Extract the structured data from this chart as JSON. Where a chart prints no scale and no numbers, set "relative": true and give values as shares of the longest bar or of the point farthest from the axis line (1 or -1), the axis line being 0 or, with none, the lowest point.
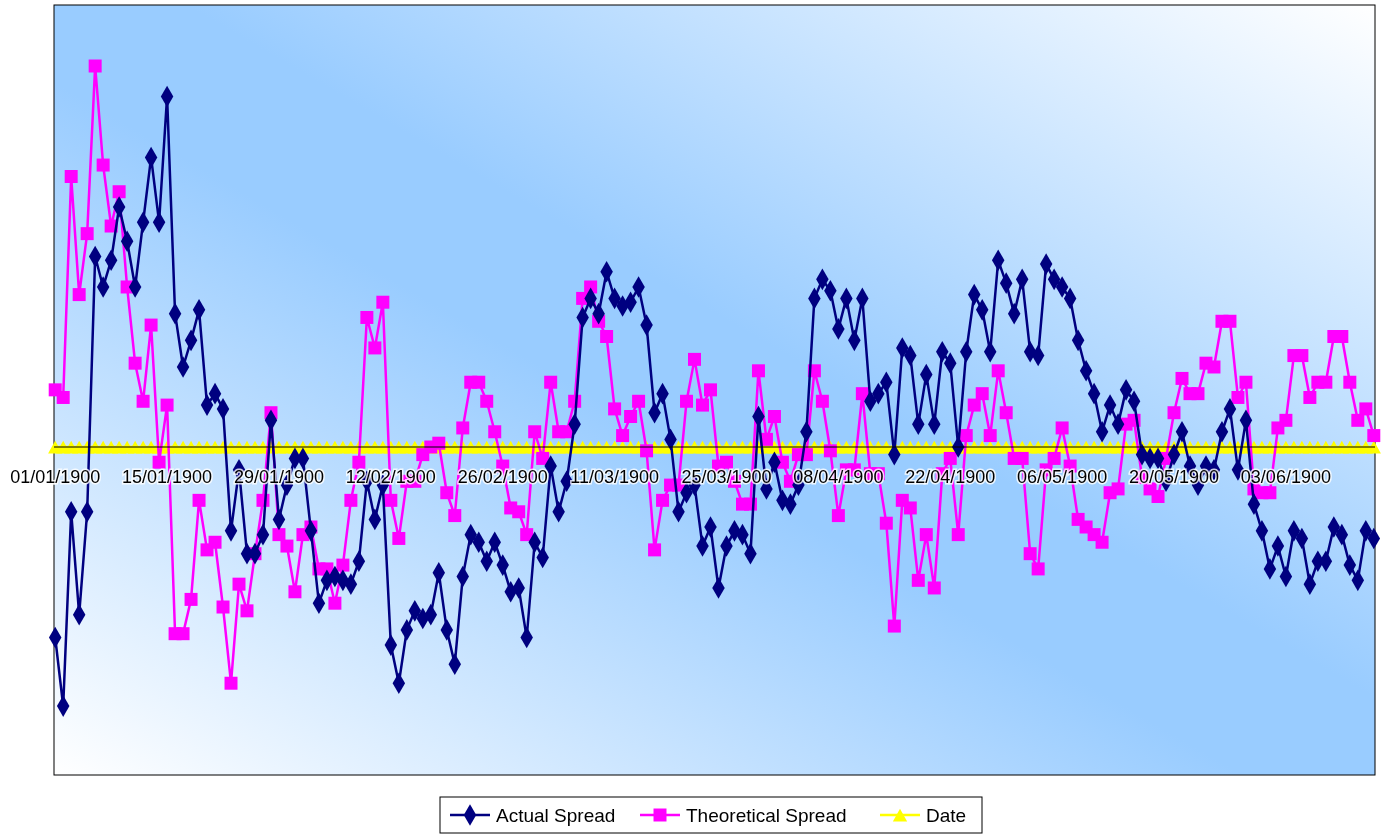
{
  "chart_data": {
    "type": "line",
    "relative": true,
    "legend": "bottom",
    "categories": [
      "01/01/1900",
      null,
      null,
      null,
      null,
      null,
      null,
      null,
      null,
      null,
      null,
      null,
      null,
      null,
      "15/01/1900",
      null,
      null,
      null,
      null,
      null,
      null,
      null,
      null,
      null,
      null,
      null,
      null,
      null,
      "29/01/1900",
      null,
      null,
      null,
      null,
      null,
      null,
      null,
      null,
      null,
      null,
      null,
      null,
      null,
      "12/02/1900",
      null,
      null,
      null,
      null,
      null,
      null,
      null,
      null,
      null,
      null,
      null,
      null,
      null,
      "26/02/1900",
      null,
      null,
      null,
      null,
      null,
      null,
      null,
      null,
      null,
      null,
      null,
      null,
      null,
      "11/03/1900",
      null,
      null,
      null,
      null,
      null,
      null,
      null,
      null,
      null,
      null,
      null,
      null,
      null,
      "25/03/1900",
      null,
      null,
      null,
      null,
      null,
      null,
      null,
      null,
      null,
      null,
      null,
      null,
      null,
      "08/04/1900",
      null,
      null,
      null,
      null,
      null,
      null,
      null,
      null,
      null,
      null,
      null,
      null,
      null,
      "22/04/1900",
      null,
      null,
      null,
      null,
      null,
      null,
      null,
      null,
      null,
      null,
      null,
      null,
      null,
      "06/05/1900",
      null,
      null,
      null,
      null,
      null,
      null,
      null,
      null,
      null,
      null,
      null,
      null,
      null,
      "20/05/1900",
      null,
      null,
      null,
      null,
      null,
      null,
      null,
      null,
      null,
      null,
      null,
      null,
      null,
      "03/06/1900",
      null,
      null,
      null,
      null,
      null,
      null,
      null,
      null,
      null,
      null,
      null
    ],
    "series": [
      {
        "name": "Actual Spread",
        "color": "#000080",
        "marker": "diamond",
        "values": [
          -0.5,
          -0.68,
          -0.17,
          -0.44,
          -0.17,
          0.5,
          0.42,
          0.49,
          0.63,
          0.54,
          0.42,
          0.59,
          0.76,
          0.59,
          0.92,
          0.35,
          0.21,
          0.28,
          0.36,
          0.11,
          0.14,
          0.1,
          -0.22,
          -0.06,
          -0.28,
          -0.28,
          -0.23,
          0.07,
          -0.19,
          -0.1,
          -0.03,
          -0.03,
          -0.22,
          -0.41,
          -0.35,
          -0.34,
          -0.35,
          -0.36,
          -0.3,
          -0.09,
          -0.19,
          -0.1,
          -0.52,
          -0.62,
          -0.48,
          -0.43,
          -0.45,
          -0.44,
          -0.33,
          -0.48,
          -0.57,
          -0.34,
          -0.23,
          -0.25,
          -0.3,
          -0.25,
          -0.31,
          -0.38,
          -0.37,
          -0.5,
          -0.25,
          -0.29,
          -0.05,
          -0.17,
          -0.09,
          0.06,
          0.34,
          0.39,
          0.35,
          0.46,
          0.39,
          0.37,
          0.38,
          0.42,
          0.32,
          0.09,
          0.14,
          0.02,
          -0.17,
          -0.12,
          -0.1,
          -0.26,
          -0.21,
          -0.37,
          -0.26,
          -0.22,
          -0.23,
          -0.28,
          0.08,
          -0.11,
          -0.04,
          -0.14,
          -0.15,
          -0.1,
          0.04,
          0.39,
          0.44,
          0.41,
          0.31,
          0.39,
          0.28,
          0.39,
          0.12,
          0.14,
          0.17,
          -0.02,
          0.26,
          0.24,
          0.06,
          0.19,
          0.06,
          0.25,
          0.22,
          0.0,
          0.25,
          0.4,
          0.36,
          0.25,
          0.49,
          0.43,
          0.35,
          0.44,
          0.25,
          0.24,
          0.48,
          0.44,
          0.42,
          0.39,
          0.28,
          0.2,
          0.14,
          0.04,
          0.11,
          0.06,
          0.15,
          0.12,
          -0.02,
          -0.03,
          -0.03,
          -0.09,
          -0.02,
          0.04,
          -0.05,
          -0.1,
          -0.05,
          -0.06,
          0.04,
          0.1,
          -0.06,
          0.07,
          -0.15,
          -0.22,
          -0.32,
          -0.26,
          -0.34,
          -0.22,
          -0.24,
          -0.36,
          -0.3,
          -0.3,
          -0.21,
          -0.23,
          -0.31,
          -0.35,
          -0.22,
          -0.24
        ]
      },
      {
        "name": "Theoretical Spread",
        "color": "#ff00ff",
        "marker": "square",
        "values": [
          0.15,
          0.13,
          0.71,
          0.4,
          0.56,
          1.0,
          0.74,
          0.58,
          0.67,
          0.42,
          0.22,
          0.12,
          0.32,
          -0.04,
          0.11,
          -0.49,
          -0.49,
          -0.4,
          -0.14,
          -0.27,
          -0.25,
          -0.42,
          -0.62,
          -0.36,
          -0.43,
          -0.28,
          -0.14,
          0.09,
          -0.23,
          -0.26,
          -0.38,
          -0.23,
          -0.21,
          -0.32,
          -0.32,
          -0.41,
          -0.31,
          -0.14,
          -0.04,
          0.34,
          0.26,
          0.38,
          -0.14,
          -0.24,
          -0.09,
          -0.09,
          -0.02,
          0.0,
          0.01,
          -0.12,
          -0.18,
          0.05,
          0.17,
          0.17,
          0.12,
          0.04,
          -0.05,
          -0.16,
          -0.17,
          -0.23,
          0.04,
          -0.03,
          0.17,
          0.04,
          0.04,
          0.12,
          0.39,
          0.42,
          0.33,
          0.29,
          0.1,
          0.03,
          0.08,
          0.12,
          -0.01,
          -0.27,
          -0.14,
          -0.1,
          -0.1,
          0.12,
          0.23,
          0.11,
          0.15,
          -0.05,
          -0.04,
          -0.09,
          -0.15,
          -0.15,
          0.2,
          0.02,
          0.08,
          -0.04,
          -0.09,
          -0.02,
          -0.02,
          0.2,
          0.12,
          -0.01,
          -0.18,
          -0.06,
          -0.06,
          0.14,
          -0.07,
          -0.07,
          -0.2,
          -0.47,
          -0.14,
          -0.16,
          -0.35,
          -0.23,
          -0.37,
          -0.07,
          -0.03,
          -0.23,
          0.03,
          0.11,
          0.14,
          0.03,
          0.2,
          0.09,
          -0.03,
          -0.03,
          -0.28,
          -0.32,
          -0.06,
          -0.03,
          0.05,
          -0.05,
          -0.19,
          -0.21,
          -0.23,
          -0.25,
          -0.12,
          -0.11,
          0.06,
          0.07,
          -0.08,
          -0.11,
          -0.13,
          -0.03,
          0.09,
          0.18,
          0.14,
          0.14,
          0.22,
          0.21,
          0.33,
          0.33,
          0.13,
          0.17,
          -0.11,
          -0.12,
          -0.12,
          0.05,
          0.07,
          0.24,
          0.24,
          0.13,
          0.17,
          0.17,
          0.29,
          0.29,
          0.17,
          0.07,
          0.1,
          0.03
        ]
      },
      {
        "name": "Date",
        "color": "#ffff00",
        "marker": "triangle",
        "values": [
          0,
          0,
          0,
          0,
          0,
          0,
          0,
          0,
          0,
          0,
          0,
          0,
          0,
          0,
          0,
          0,
          0,
          0,
          0,
          0,
          0,
          0,
          0,
          0,
          0,
          0,
          0,
          0,
          0,
          0,
          0,
          0,
          0,
          0,
          0,
          0,
          0,
          0,
          0,
          0,
          0,
          0,
          0,
          0,
          0,
          0,
          0,
          0,
          0,
          0,
          0,
          0,
          0,
          0,
          0,
          0,
          0,
          0,
          0,
          0,
          0,
          0,
          0,
          0,
          0,
          0,
          0,
          0,
          0,
          0,
          0,
          0,
          0,
          0,
          0,
          0,
          0,
          0,
          0,
          0,
          0,
          0,
          0,
          0,
          0,
          0,
          0,
          0,
          0,
          0,
          0,
          0,
          0,
          0,
          0,
          0,
          0,
          0,
          0,
          0,
          0,
          0,
          0,
          0,
          0,
          0,
          0,
          0,
          0,
          0,
          0,
          0,
          0,
          0,
          0,
          0,
          0,
          0,
          0,
          0,
          0,
          0,
          0,
          0,
          0,
          0,
          0,
          0,
          0,
          0,
          0,
          0,
          0,
          0,
          0,
          0,
          0,
          0,
          0,
          0,
          0,
          0,
          0,
          0,
          0,
          0,
          0,
          0,
          0,
          0,
          0,
          0,
          0,
          0,
          0,
          0,
          0,
          0,
          0,
          0,
          0,
          0,
          0,
          0,
          0,
          0
        ]
      }
    ]
  }
}
